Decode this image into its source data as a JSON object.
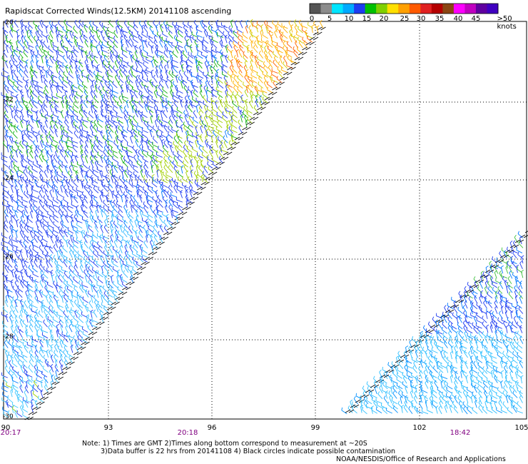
{
  "title": "Rapidscat Corrected Winds(12.5KM) 20141108 ascending",
  "legend": {
    "colors": [
      "#555555",
      "#8c8c8c",
      "#00e5ff",
      "#00aaff",
      "#1e3cf0",
      "#00c000",
      "#80d000",
      "#ffe000",
      "#ffa000",
      "#ff5a00",
      "#e02020",
      "#b40000",
      "#8b4513",
      "#ff00ff",
      "#c000c0",
      "#6000a0",
      "#4000c0"
    ],
    "labels": [
      "0",
      "5",
      "10",
      "15",
      "20",
      "25",
      "30",
      "35",
      "40",
      "45",
      ">50 knots"
    ]
  },
  "axes": {
    "x_ticks": [
      "90",
      "93",
      "96",
      "99",
      "102",
      "105"
    ],
    "y_ticks": [
      "-20",
      "-22",
      "-24",
      "-26",
      "-28",
      "-30"
    ]
  },
  "times": [
    "20:17",
    "20:18",
    "18:42"
  ],
  "notes": [
    "Note: 1) Times are GMT 2)Times along bottom correspond to measurement at ~20S",
    "3)Data buffer is 22 hrs from 20141108 4) Black circles indicate possible contamination",
    "NOAA/NESDIS/Office of Research and Applications"
  ]
}
